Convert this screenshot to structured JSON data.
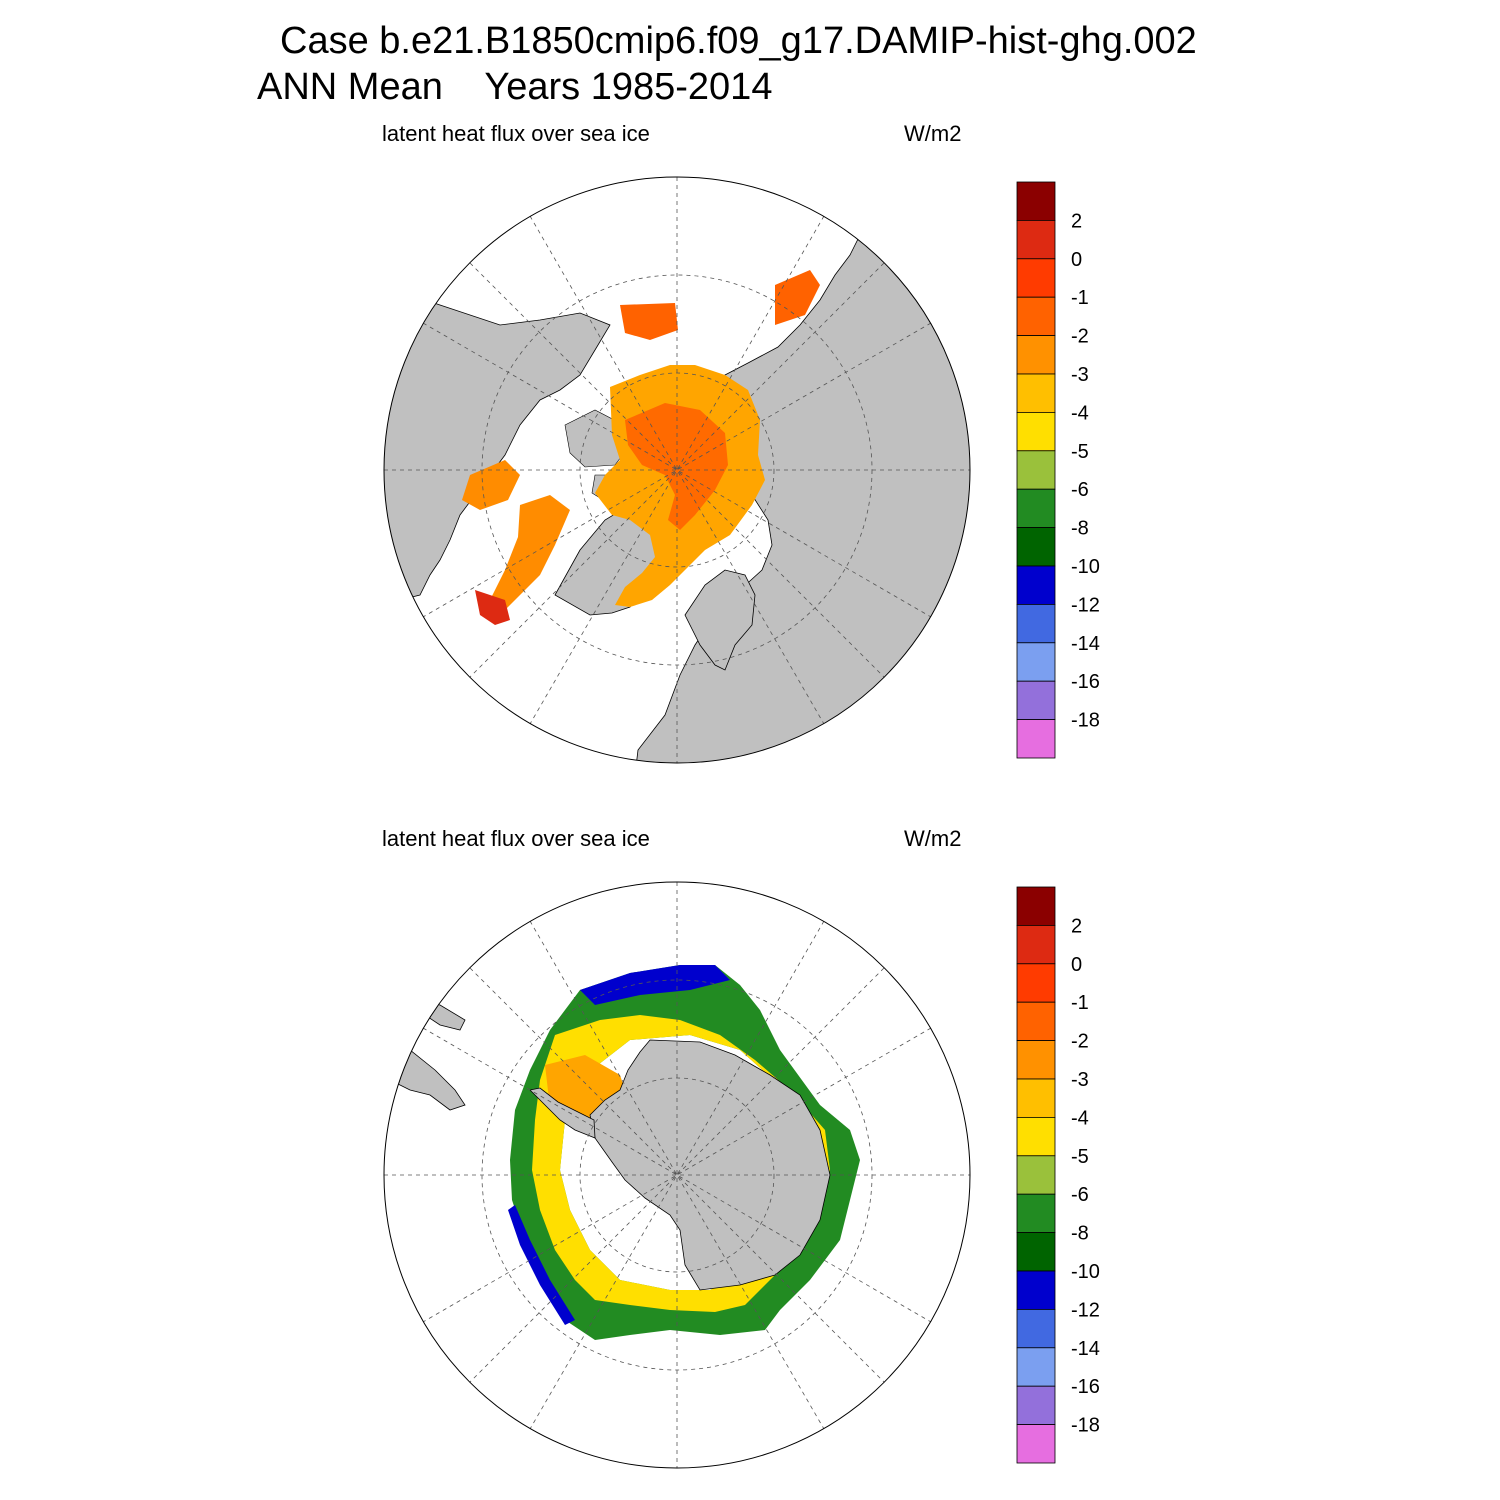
{
  "title": {
    "line1": "Case b.e21.B1850cmip6.f09_g17.DAMIP-hist-ghg.002",
    "line2": "ANN Mean    Years 1985-2014"
  },
  "panels": [
    {
      "hemisphere": "north",
      "variable_label": "latent heat flux over sea ice",
      "units_label": "W/m2"
    },
    {
      "hemisphere": "south",
      "variable_label": "latent heat flux over sea ice",
      "units_label": "W/m2"
    }
  ],
  "colorbar": {
    "labels": [
      "2",
      "0",
      "-1",
      "-2",
      "-3",
      "-4",
      "-5",
      "-6",
      "-8",
      "-10",
      "-12",
      "-14",
      "-16",
      "-18"
    ],
    "colors": [
      "#8b0000",
      "#dd2a12",
      "#ff3b00",
      "#ff6200",
      "#ff9100",
      "#ffbf00",
      "#ffdf00",
      "#9ac13b",
      "#228b22",
      "#006400",
      "#0000cd",
      "#4169e1",
      "#7b9ff0",
      "#9370db",
      "#e66ee0"
    ]
  },
  "colors": {
    "land": "#c0c0c0",
    "ocean": "#ffffff",
    "grid": "#555555"
  }
}
